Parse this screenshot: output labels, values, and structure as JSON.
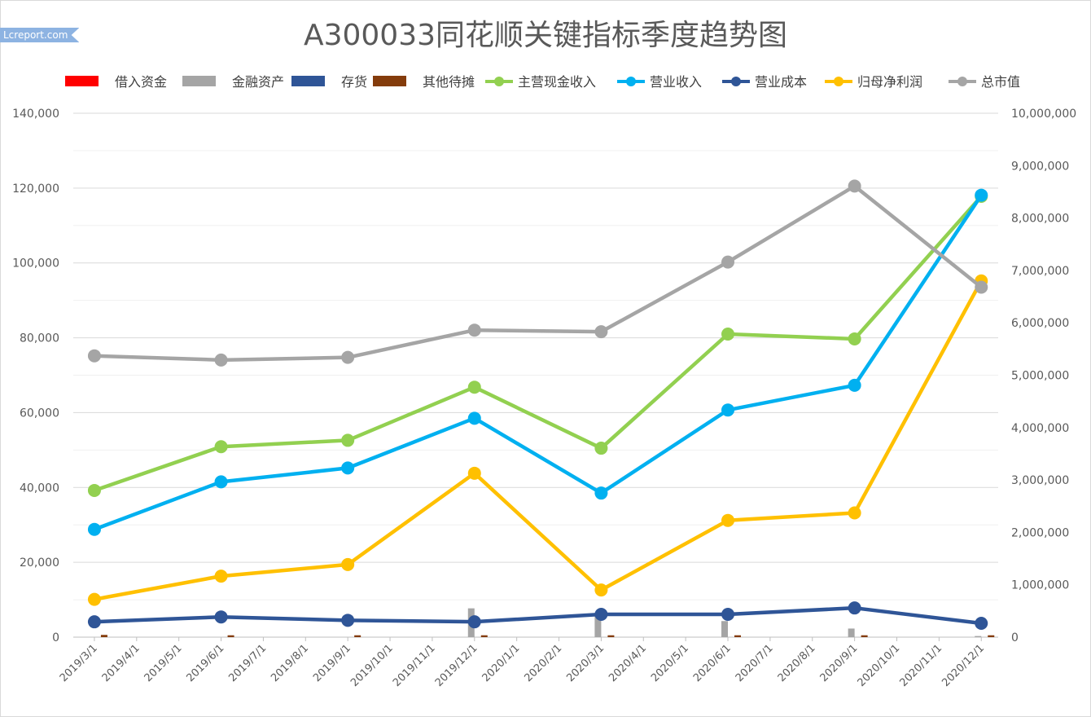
{
  "watermark": "Lcreport.com",
  "chart_data": {
    "type": "line",
    "title": "A300033同花顺关键指标季度趋势图",
    "x_ticks": [
      "2019/3/1",
      "2019/4/1",
      "2019/5/1",
      "2019/6/1",
      "2019/7/1",
      "2019/8/1",
      "2019/9/1",
      "2019/10/1",
      "2019/11/1",
      "2019/12/1",
      "2020/1/1",
      "2020/2/1",
      "2020/3/1",
      "2020/4/1",
      "2020/5/1",
      "2020/6/1",
      "2020/7/1",
      "2020/8/1",
      "2020/9/1",
      "2020/10/1",
      "2020/11/1",
      "2020/12/1"
    ],
    "x": [
      "2019/3/1",
      "2019/6/1",
      "2019/9/1",
      "2019/12/1",
      "2020/3/1",
      "2020/6/1",
      "2020/9/1",
      "2020/12/1"
    ],
    "left_axis": {
      "ylim": [
        0,
        140000
      ],
      "ticks": [
        "0",
        "20,000",
        "40,000",
        "60,000",
        "80,000",
        "100,000",
        "120,000",
        "140,000"
      ]
    },
    "right_axis": {
      "ylim": [
        0,
        10000000
      ],
      "ticks": [
        "0",
        "1,000,000",
        "2,000,000",
        "3,000,000",
        "4,000,000",
        "5,000,000",
        "6,000,000",
        "7,000,000",
        "8,000,000",
        "9,000,000",
        "10,000,000"
      ]
    },
    "grid": true,
    "legend_position": "top",
    "series": [
      {
        "name": "借入资金",
        "kind": "bar",
        "axis": "left",
        "color": "#ff0000",
        "values": [
          0,
          0,
          0,
          0,
          0,
          0,
          0,
          0
        ]
      },
      {
        "name": "金融资产",
        "kind": "bar",
        "axis": "left",
        "color": "#a5a5a5",
        "values": [
          0,
          0,
          0,
          7700,
          6500,
          4300,
          2300,
          300
        ]
      },
      {
        "name": "存货",
        "kind": "bar",
        "axis": "left",
        "color": "#2f5597",
        "values": [
          0,
          0,
          0,
          0,
          0,
          0,
          0,
          0
        ]
      },
      {
        "name": "其他待摊",
        "kind": "bar",
        "axis": "left",
        "color": "#843c0c",
        "values": [
          600,
          500,
          500,
          500,
          500,
          500,
          500,
          500
        ]
      },
      {
        "name": "主营现金收入",
        "kind": "line",
        "axis": "left",
        "color": "#92d050",
        "values": [
          39200,
          50900,
          52600,
          66800,
          50500,
          81000,
          79700,
          117800
        ]
      },
      {
        "name": "营业收入",
        "kind": "line",
        "axis": "left",
        "color": "#00b0f0",
        "values": [
          28800,
          41500,
          45200,
          58500,
          38500,
          60700,
          67300,
          118100
        ]
      },
      {
        "name": "营业成本",
        "kind": "line",
        "axis": "left",
        "color": "#2f5597",
        "values": [
          4100,
          5400,
          4500,
          4100,
          6100,
          6100,
          7800,
          3700
        ]
      },
      {
        "name": "归母净利润",
        "kind": "line",
        "axis": "left",
        "color": "#ffc000",
        "values": [
          10100,
          16300,
          19400,
          43800,
          12600,
          31200,
          33200,
          95200
        ]
      },
      {
        "name": "总市值",
        "kind": "line",
        "axis": "right",
        "color": "#a5a5a5",
        "values": [
          5370000,
          5290000,
          5340000,
          5860000,
          5830000,
          7160000,
          8610000,
          6680000
        ]
      }
    ]
  }
}
